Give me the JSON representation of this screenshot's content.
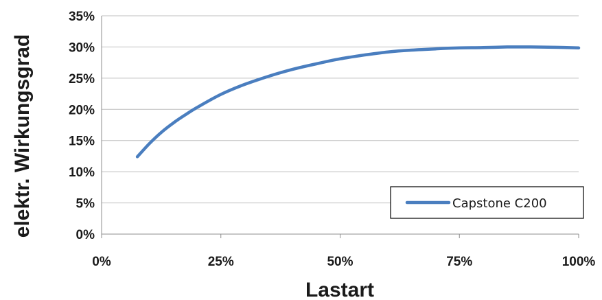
{
  "chart_data": {
    "type": "line",
    "xlabel": "Lastart",
    "ylabel": "elektr. Wirkungsgrad",
    "xlim": [
      0,
      100
    ],
    "ylim": [
      0,
      35
    ],
    "x_ticks": [
      "0%",
      "25%",
      "50%",
      "75%",
      "100%"
    ],
    "y_ticks": [
      "0%",
      "5%",
      "10%",
      "15%",
      "20%",
      "25%",
      "30%",
      "35%"
    ],
    "grid": "horizontal",
    "legend_position": "bottom-right",
    "series": [
      {
        "name": "Capstone C200",
        "color": "#4a7ebf",
        "x": [
          7.5,
          10,
          12.5,
          15,
          17.5,
          20,
          25,
          30,
          35,
          40,
          45,
          50,
          55,
          60,
          65,
          70,
          75,
          80,
          85,
          90,
          95,
          100
        ],
        "y": [
          12.4,
          14.5,
          16.3,
          17.8,
          19.1,
          20.3,
          22.4,
          24.0,
          25.3,
          26.4,
          27.3,
          28.1,
          28.7,
          29.2,
          29.5,
          29.7,
          29.85,
          29.9,
          30.0,
          30.0,
          29.95,
          29.85
        ]
      }
    ]
  }
}
